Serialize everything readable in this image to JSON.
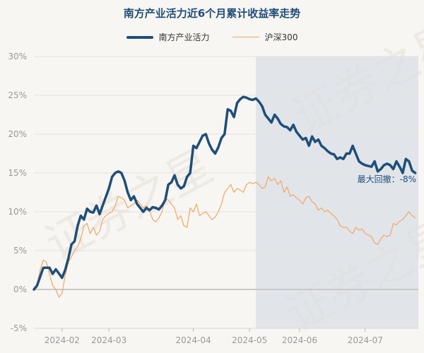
{
  "chart_data": {
    "type": "line",
    "title": "南方产业活力近6个月累计收益率走势",
    "watermark": "证券之星",
    "x_tick_labels": [
      "2024-02",
      "2024-03",
      "2024-04",
      "2024-05",
      "2024-06",
      "2024-07"
    ],
    "y_tick_labels": [
      "30%",
      "25%",
      "20%",
      "15%",
      "10%",
      "5%",
      "0%",
      "-5%"
    ],
    "ylim": [
      -5,
      30
    ],
    "x_count": 124,
    "x_tick_positions": [
      9,
      24,
      51,
      69,
      85,
      106
    ],
    "drawdown": {
      "label": "最大回撤：-8%",
      "start_index": 71,
      "value": -8
    },
    "colors": {
      "main": "#1f4e79",
      "index": "#f0a667",
      "shade": "#d9dfe6"
    },
    "series": [
      {
        "name": "南方产业活力",
        "points": [
          [
            0,
            0
          ],
          [
            1,
            0.5
          ],
          [
            3,
            2.8
          ],
          [
            5,
            2.8
          ],
          [
            6,
            2
          ],
          [
            7,
            2.6
          ],
          [
            9,
            1.5
          ],
          [
            10,
            2.5
          ],
          [
            11,
            4
          ],
          [
            12,
            5.8
          ],
          [
            13,
            6.2
          ],
          [
            14,
            8.2
          ],
          [
            15,
            9.5
          ],
          [
            16,
            9
          ],
          [
            17,
            10.4
          ],
          [
            18,
            10
          ],
          [
            19,
            9.9
          ],
          [
            20,
            10.8
          ],
          [
            21,
            9.7
          ],
          [
            22,
            10.8
          ],
          [
            24,
            13
          ],
          [
            25,
            14.5
          ],
          [
            26,
            15
          ],
          [
            27,
            15.2
          ],
          [
            28,
            15
          ],
          [
            29,
            14
          ],
          [
            30,
            12.5
          ],
          [
            31,
            11.5
          ],
          [
            32,
            12
          ],
          [
            33,
            11
          ],
          [
            34,
            10.5
          ],
          [
            35,
            10
          ],
          [
            36,
            10.5
          ],
          [
            37,
            10.2
          ],
          [
            38,
            10.6
          ],
          [
            39,
            10.5
          ],
          [
            40,
            10.3
          ],
          [
            41,
            10.8
          ],
          [
            42,
            11.5
          ],
          [
            43,
            13.5
          ],
          [
            44,
            13.8
          ],
          [
            45,
            14.7
          ],
          [
            46,
            13.5
          ],
          [
            47,
            13
          ],
          [
            48,
            13.3
          ],
          [
            49,
            14.5
          ],
          [
            50,
            15
          ],
          [
            51,
            18.5
          ],
          [
            52,
            18.2
          ],
          [
            53,
            19
          ],
          [
            54,
            19.8
          ],
          [
            55,
            20
          ],
          [
            56,
            18.8
          ],
          [
            57,
            18
          ],
          [
            58,
            17.5
          ],
          [
            59,
            18.3
          ],
          [
            60,
            19.5
          ],
          [
            61,
            20
          ],
          [
            62,
            23.2
          ],
          [
            63,
            23
          ],
          [
            64,
            22.2
          ],
          [
            65,
            24
          ],
          [
            66,
            24.5
          ],
          [
            67,
            24.8
          ],
          [
            68,
            24.7
          ],
          [
            69,
            24.5
          ],
          [
            70,
            24.4
          ],
          [
            71,
            24.6
          ],
          [
            72,
            24.2
          ],
          [
            73,
            23.6
          ],
          [
            74,
            22.5
          ],
          [
            75,
            22
          ],
          [
            76,
            21.5
          ],
          [
            77,
            22.5
          ],
          [
            78,
            22
          ],
          [
            79,
            21.3
          ],
          [
            80,
            21
          ],
          [
            81,
            20.9
          ],
          [
            82,
            20.5
          ],
          [
            83,
            21.2
          ],
          [
            84,
            20.3
          ],
          [
            85,
            19.8
          ],
          [
            86,
            19.3
          ],
          [
            87,
            19.5
          ],
          [
            88,
            18.5
          ],
          [
            89,
            19.7
          ],
          [
            90,
            19
          ],
          [
            91,
            19.3
          ],
          [
            92,
            18.5
          ],
          [
            93,
            18.2
          ],
          [
            94,
            17.8
          ],
          [
            95,
            17.5
          ],
          [
            96,
            17.4
          ],
          [
            97,
            16.8
          ],
          [
            98,
            17
          ],
          [
            99,
            16.8
          ],
          [
            100,
            17.5
          ],
          [
            101,
            17.5
          ],
          [
            102,
            18.5
          ],
          [
            103,
            17.5
          ],
          [
            104,
            16.5
          ],
          [
            105,
            16.2
          ],
          [
            106,
            16
          ],
          [
            107,
            15.9
          ],
          [
            108,
            15.8
          ],
          [
            109,
            16.5
          ],
          [
            110,
            15.2
          ],
          [
            111,
            15.5
          ],
          [
            112,
            16
          ],
          [
            113,
            16.2
          ],
          [
            114,
            16
          ],
          [
            115,
            15.5
          ],
          [
            116,
            16.5
          ],
          [
            117,
            15.8
          ],
          [
            118,
            15
          ],
          [
            119,
            16.8
          ],
          [
            120,
            16.5
          ],
          [
            121,
            15.3
          ],
          [
            122,
            15
          ]
        ]
      },
      {
        "name": "沪深300",
        "points": [
          [
            0,
            0
          ],
          [
            1,
            0.6
          ],
          [
            2,
            2.5
          ],
          [
            3,
            3.8
          ],
          [
            4,
            3.5
          ],
          [
            5,
            2
          ],
          [
            6,
            0.5
          ],
          [
            7,
            0
          ],
          [
            8,
            -1
          ],
          [
            9,
            -0.5
          ],
          [
            10,
            1.8
          ],
          [
            11,
            3.5
          ],
          [
            12,
            4.2
          ],
          [
            13,
            5
          ],
          [
            14,
            5.5
          ],
          [
            15,
            6.5
          ],
          [
            16,
            8.2
          ],
          [
            17,
            8.5
          ],
          [
            18,
            7.2
          ],
          [
            19,
            8
          ],
          [
            20,
            7
          ],
          [
            21,
            7.5
          ],
          [
            22,
            9
          ],
          [
            23,
            9.5
          ],
          [
            24,
            9.8
          ],
          [
            25,
            10
          ],
          [
            26,
            10.8
          ],
          [
            27,
            12
          ],
          [
            28,
            11.8
          ],
          [
            29,
            11.5
          ],
          [
            30,
            10.5
          ],
          [
            31,
            10.8
          ],
          [
            32,
            11
          ],
          [
            33,
            11.5
          ],
          [
            34,
            11
          ],
          [
            35,
            10.5
          ],
          [
            36,
            10.8
          ],
          [
            37,
            10.2
          ],
          [
            38,
            9
          ],
          [
            39,
            8.7
          ],
          [
            40,
            9.2
          ],
          [
            41,
            10
          ],
          [
            42,
            11.8
          ],
          [
            43,
            11.5
          ],
          [
            44,
            11
          ],
          [
            45,
            10.5
          ],
          [
            46,
            9
          ],
          [
            47,
            9.5
          ],
          [
            48,
            8.2
          ],
          [
            49,
            8
          ],
          [
            50,
            10.5
          ],
          [
            51,
            10
          ],
          [
            52,
            11
          ],
          [
            53,
            9.5
          ],
          [
            54,
            9.8
          ],
          [
            55,
            10
          ],
          [
            56,
            9.5
          ],
          [
            57,
            9
          ],
          [
            58,
            9.3
          ],
          [
            59,
            10
          ],
          [
            60,
            11
          ],
          [
            61,
            12.5
          ],
          [
            62,
            13
          ],
          [
            63,
            13.5
          ],
          [
            64,
            12.5
          ],
          [
            65,
            13
          ],
          [
            66,
            12.8
          ],
          [
            67,
            12.5
          ],
          [
            68,
            13.5
          ],
          [
            69,
            13.8
          ],
          [
            70,
            13.6
          ],
          [
            71,
            13.8
          ],
          [
            72,
            13.5
          ],
          [
            73,
            13
          ],
          [
            74,
            13.2
          ],
          [
            75,
            14.5
          ],
          [
            76,
            14
          ],
          [
            77,
            14.3
          ],
          [
            78,
            13.5
          ],
          [
            79,
            14
          ],
          [
            80,
            12.5
          ],
          [
            81,
            13.2
          ],
          [
            82,
            12
          ],
          [
            83,
            12.2
          ],
          [
            84,
            11.8
          ],
          [
            85,
            11.5
          ],
          [
            86,
            11
          ],
          [
            87,
            11.8
          ],
          [
            88,
            12
          ],
          [
            89,
            11.3
          ],
          [
            90,
            11
          ],
          [
            91,
            10.2
          ],
          [
            92,
            10.5
          ],
          [
            93,
            10
          ],
          [
            94,
            10.2
          ],
          [
            95,
            9.8
          ],
          [
            96,
            9.5
          ],
          [
            97,
            9
          ],
          [
            98,
            8.2
          ],
          [
            99,
            8
          ],
          [
            100,
            8
          ],
          [
            101,
            7.5
          ],
          [
            102,
            7.2
          ],
          [
            103,
            8
          ],
          [
            104,
            7.6
          ],
          [
            105,
            7.8
          ],
          [
            106,
            7.2
          ],
          [
            107,
            7
          ],
          [
            108,
            6.8
          ],
          [
            109,
            6
          ],
          [
            110,
            5.8
          ],
          [
            111,
            6.5
          ],
          [
            112,
            7
          ],
          [
            113,
            6.8
          ],
          [
            114,
            7
          ],
          [
            115,
            8.5
          ],
          [
            116,
            8.3
          ],
          [
            117,
            8.8
          ],
          [
            118,
            9
          ],
          [
            119,
            9.5
          ],
          [
            120,
            10
          ],
          [
            121,
            9.5
          ],
          [
            122,
            9.2
          ]
        ]
      }
    ]
  }
}
